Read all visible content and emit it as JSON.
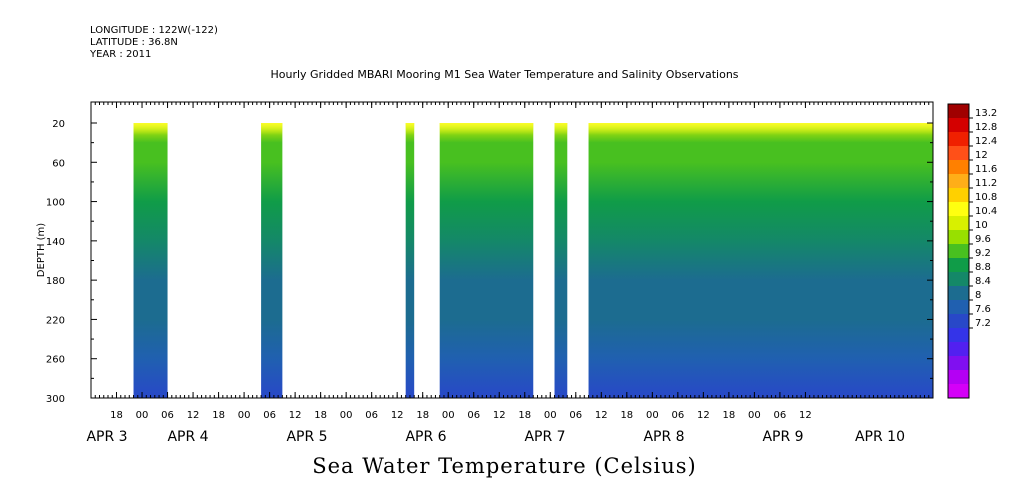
{
  "header": {
    "longitude": "LONGITUDE : 122W(-122)",
    "latitude": "LATITUDE : 36.8N",
    "year": "YEAR : 2011"
  },
  "title": "Hourly Gridded MBARI Mooring M1 Sea Water Temperature and Salinity Observations",
  "footer_label": "Sea Water Temperature (Celsius)",
  "chart_data": {
    "type": "heatmap",
    "title": "Hourly Gridded MBARI Mooring M1 Sea Water Temperature and Salinity Observations",
    "xlabel": "",
    "ylabel": "DEPTH (m)",
    "variable": "Sea Water Temperature (Celsius)",
    "y_axis": {
      "ticks": [
        20,
        60,
        100,
        140,
        180,
        220,
        260,
        300
      ],
      "range": [
        20,
        300
      ],
      "inverted": true
    },
    "x_axis": {
      "hour_ticks": [
        "18",
        "00",
        "06",
        "12",
        "18",
        "00",
        "06",
        "12",
        "18",
        "00",
        "06",
        "12",
        "18",
        "00",
        "06",
        "12",
        "18",
        "00",
        "06",
        "12",
        "18",
        "00",
        "06",
        "12",
        "18",
        "00",
        "06",
        "12"
      ],
      "day_labels": [
        {
          "text": "APR  3"
        },
        {
          "text": "APR  4"
        },
        {
          "text": "APR  5"
        },
        {
          "text": "APR  6"
        },
        {
          "text": "APR  7"
        },
        {
          "text": "APR  8"
        },
        {
          "text": "APR  9"
        },
        {
          "text": "APR 10"
        }
      ],
      "range": [
        "2011-04-02T12:00",
        "2011-04-10T18:00"
      ]
    },
    "data_segments": [
      {
        "start": "2011-04-02T22:00",
        "end": "2011-04-03T06:00"
      },
      {
        "start": "2011-04-04T04:00",
        "end": "2011-04-04T09:00"
      },
      {
        "start": "2011-04-05T14:00",
        "end": "2011-04-05T16:00"
      },
      {
        "start": "2011-04-05T22:00",
        "end": "2011-04-06T20:00"
      },
      {
        "start": "2011-04-07T01:00",
        "end": "2011-04-07T04:00"
      },
      {
        "start": "2011-04-07T09:00",
        "end": "2011-04-10T18:00"
      }
    ],
    "depth_profile": [
      {
        "depth": 20,
        "temperature": 10.0
      },
      {
        "depth": 40,
        "temperature": 9.5
      },
      {
        "depth": 60,
        "temperature": 9.2
      },
      {
        "depth": 100,
        "temperature": 9.0
      },
      {
        "depth": 140,
        "temperature": 8.7
      },
      {
        "depth": 180,
        "temperature": 8.3
      },
      {
        "depth": 220,
        "temperature": 8.0
      },
      {
        "depth": 260,
        "temperature": 7.8
      },
      {
        "depth": 300,
        "temperature": 7.4
      }
    ],
    "colorbar": {
      "levels": [
        "13.2",
        "12.8",
        "12.4",
        "12",
        "11.6",
        "11.2",
        "10.8",
        "10.4",
        "10",
        "9.6",
        "9.2",
        "8.8",
        "8.4",
        "8",
        "7.6",
        "7.2"
      ],
      "colors": [
        "#a00000",
        "#d40000",
        "#f02000",
        "#ff5018",
        "#ff8000",
        "#ffae18",
        "#ffd000",
        "#ffff10",
        "#d8f000",
        "#98e000",
        "#48c020",
        "#109c48",
        "#148868",
        "#1c6c90",
        "#2060b0",
        "#2848c8",
        "#3434e8",
        "#5220f0",
        "#8010f0",
        "#b400f4",
        "#d400f8"
      ]
    }
  }
}
